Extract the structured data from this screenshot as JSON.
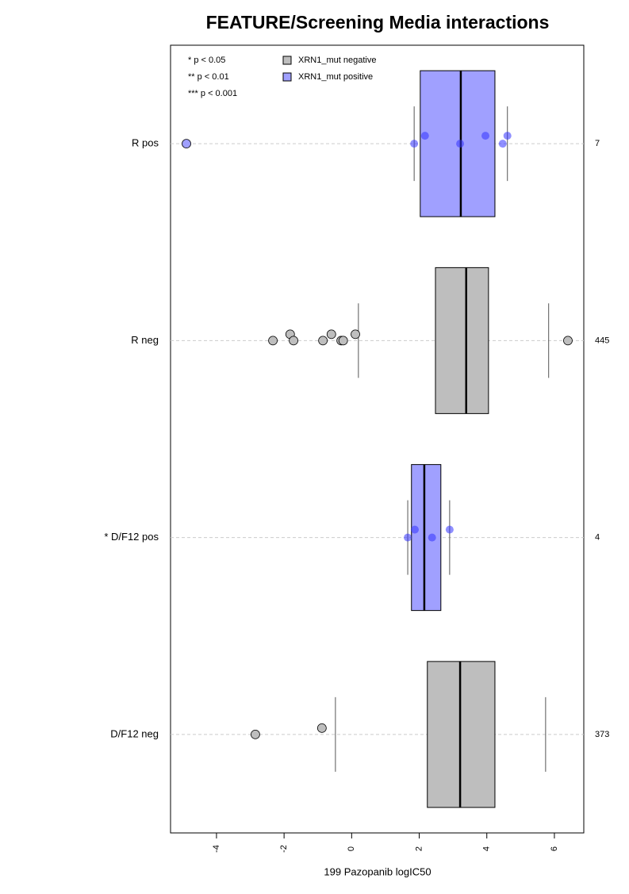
{
  "chart_data": {
    "type": "boxplot",
    "title": "FEATURE/Screening Media interactions",
    "xlabel": "199 Pazopanib logIC50",
    "categories": [
      "R pos",
      "R neg",
      "* D/F12 pos",
      "D/F12 neg"
    ],
    "counts": [
      7,
      445,
      4,
      373
    ],
    "boxes": [
      {
        "color": "#a0a0ff",
        "whislo": 1.85,
        "q1": 2.03,
        "med": 3.23,
        "q3": 4.24,
        "whishi": 4.61,
        "fliers": [
          -4.89
        ],
        "points": [
          1.85,
          2.17,
          3.21,
          3.96,
          4.47,
          4.61
        ]
      },
      {
        "color": "#bebebe",
        "whislo": 0.2,
        "q1": 2.48,
        "med": 3.39,
        "q3": 4.05,
        "whishi": 5.83,
        "fliers": [
          -2.33,
          -1.82,
          -1.72,
          -0.85,
          -0.6,
          -0.31,
          -0.25,
          0.11,
          6.4
        ],
        "points": []
      },
      {
        "color": "#a0a0ff",
        "whislo": 1.66,
        "q1": 1.77,
        "med": 2.15,
        "q3": 2.64,
        "whishi": 2.9,
        "fliers": [],
        "points": [
          1.66,
          1.87,
          2.38,
          2.9
        ]
      },
      {
        "color": "#bebebe",
        "whislo": -0.48,
        "q1": 2.24,
        "med": 3.21,
        "q3": 4.24,
        "whishi": 5.74,
        "fliers": [
          -2.85,
          -0.88
        ],
        "points": []
      }
    ],
    "legend": [
      {
        "name": "XRN1_mut negative",
        "color": "#bebebe"
      },
      {
        "name": "XRN1_mut positive",
        "color": "#a0a0ff"
      }
    ],
    "annotations": [
      "* p < 0.05",
      "** p < 0.01",
      "*** p < 0.001"
    ],
    "xlim": [
      -5.36,
      6.87
    ],
    "xticks": [
      -4,
      -2,
      0,
      2,
      4,
      6
    ]
  }
}
